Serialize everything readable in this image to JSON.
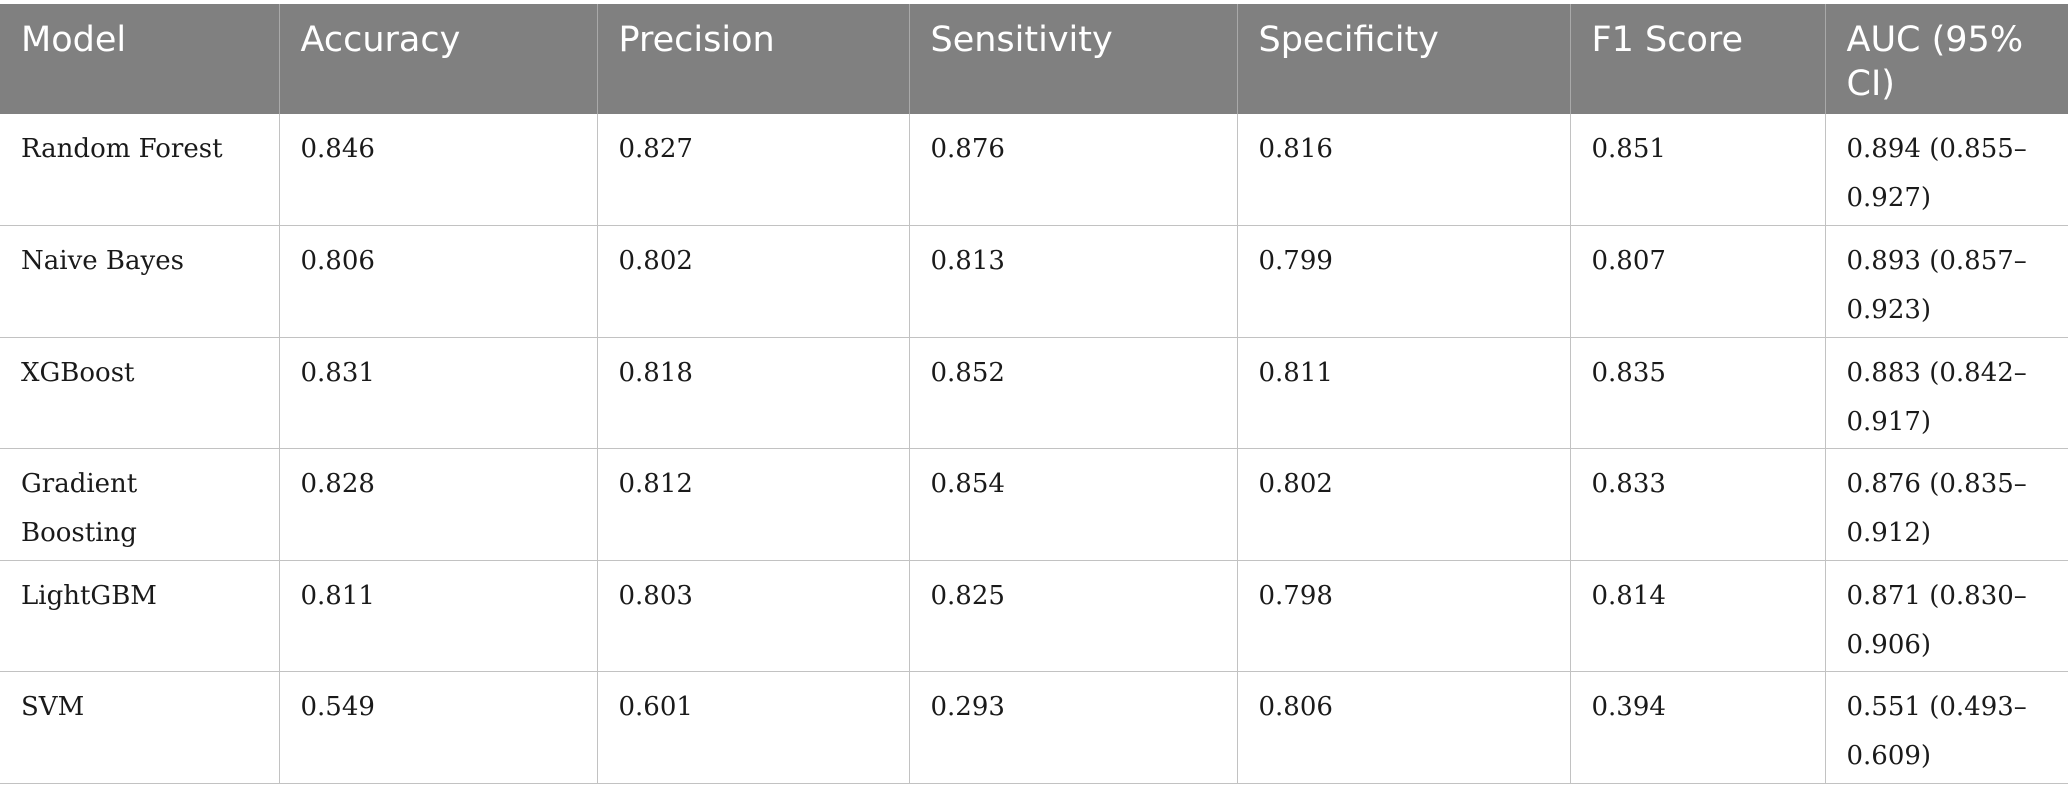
{
  "table": {
    "headers": [
      "Model",
      "Accuracy",
      "Precision",
      "Sensitivity",
      "Specificity",
      "F1 Score",
      "AUC (95% CI)"
    ],
    "rows": [
      [
        "Random Forest",
        "0.846",
        "0.827",
        "0.876",
        "0.816",
        "0.851",
        "0.894 (0.855–0.927)"
      ],
      [
        "Naive Bayes",
        "0.806",
        "0.802",
        "0.813",
        "0.799",
        "0.807",
        "0.893 (0.857–0.923)"
      ],
      [
        "XGBoost",
        "0.831",
        "0.818",
        "0.852",
        "0.811",
        "0.835",
        "0.883 (0.842–0.917)"
      ],
      [
        "Gradient Boosting",
        "0.828",
        "0.812",
        "0.854",
        "0.802",
        "0.833",
        "0.876 (0.835–0.912)"
      ],
      [
        "LightGBM",
        "0.811",
        "0.803",
        "0.825",
        "0.798",
        "0.814",
        "0.871 (0.830–0.906)"
      ],
      [
        "SVM",
        "0.549",
        "0.601",
        "0.293",
        "0.806",
        "0.394",
        "0.551 (0.493–0.609)"
      ]
    ]
  }
}
